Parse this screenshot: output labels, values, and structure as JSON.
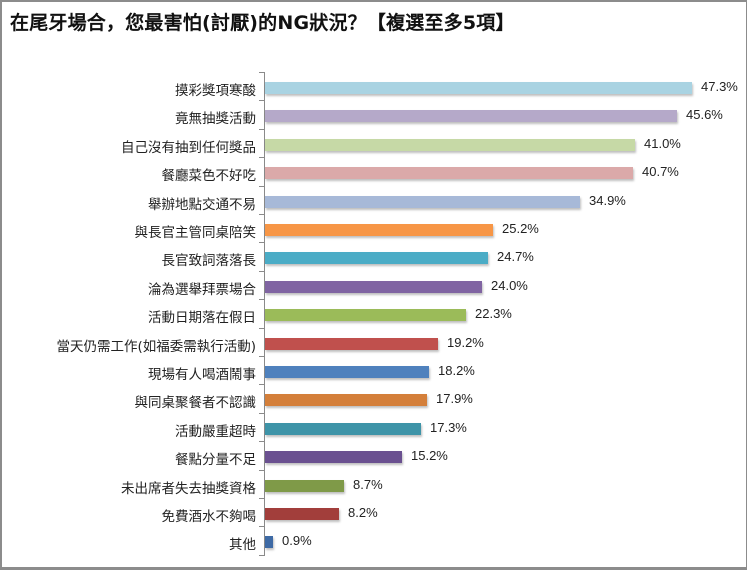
{
  "chart_data": {
    "type": "bar",
    "orientation": "horizontal",
    "title": "在尾牙場合，您最害怕(討厭)的NG狀況？【複選至多5項】",
    "xlabel": "",
    "ylabel": "",
    "xlim": [
      0,
      50
    ],
    "grid": false,
    "legend": null,
    "categories": [
      "摸彩獎項寒酸",
      "竟無抽獎活動",
      "自己沒有抽到任何獎品",
      "餐廳菜色不好吃",
      "舉辦地點交通不易",
      "與長官主管同桌陪笑",
      "長官致詞落落長",
      "淪為選舉拜票場合",
      "活動日期落在假日",
      "當天仍需工作(如福委需執行活動)",
      "現場有人喝酒鬧事",
      "與同桌聚餐者不認識",
      "活動嚴重超時",
      "餐點分量不足",
      "未出席者失去抽獎資格",
      "免費酒水不夠喝",
      "其他"
    ],
    "values": [
      47.3,
      45.6,
      41.0,
      40.7,
      34.9,
      25.2,
      24.7,
      24.0,
      22.3,
      19.2,
      18.2,
      17.9,
      17.3,
      15.2,
      8.7,
      8.2,
      0.9
    ],
    "value_labels": [
      "47.3%",
      "45.6%",
      "41.0%",
      "40.7%",
      "34.9%",
      "25.2%",
      "24.7%",
      "24.0%",
      "22.3%",
      "19.2%",
      "18.2%",
      "17.9%",
      "17.3%",
      "15.2%",
      "8.7%",
      "8.2%",
      "0.9%"
    ],
    "colors": [
      "#a9d3e2",
      "#b5a9c9",
      "#c6d9a6",
      "#dba9a9",
      "#a7b9d8",
      "#f79646",
      "#4bacc6",
      "#8064a2",
      "#9bbb59",
      "#c0504d",
      "#4f81bd",
      "#d47f3a",
      "#3e94a8",
      "#6a5090",
      "#7f9a48",
      "#a23e3b",
      "#3e6aa5"
    ]
  }
}
